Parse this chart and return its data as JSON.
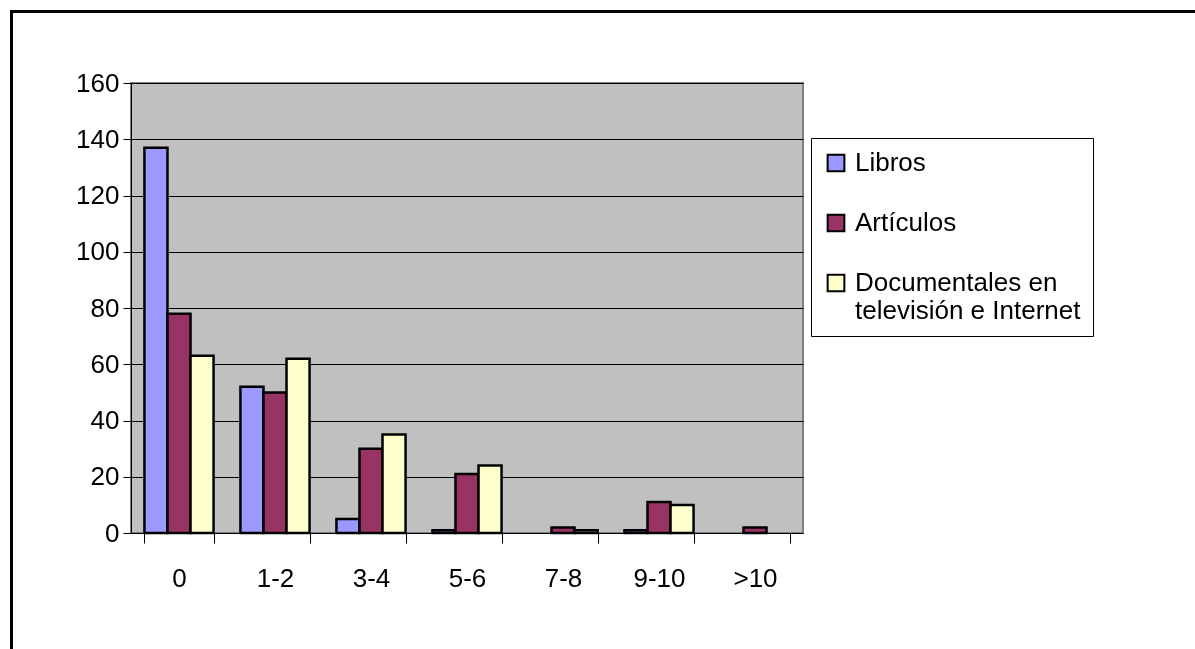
{
  "chart_data": {
    "type": "bar",
    "categories": [
      "0",
      "1-2",
      "3-4",
      "5-6",
      "7-8",
      "9-10",
      ">10"
    ],
    "series": [
      {
        "name": "Libros",
        "color": "#9999ff",
        "values": [
          137,
          52,
          5,
          1,
          0,
          1,
          0
        ]
      },
      {
        "name": "Artículos",
        "color": "#993366",
        "values": [
          78,
          50,
          30,
          21,
          2,
          11,
          2
        ]
      },
      {
        "name": "Documentales en televisión e Internet",
        "color": "#ffffcc",
        "values": [
          63,
          62,
          35,
          24,
          1,
          10,
          0
        ]
      }
    ],
    "ylim": [
      0,
      160
    ],
    "yticks": [
      0,
      20,
      40,
      60,
      80,
      100,
      120,
      140,
      160
    ],
    "grid": "y",
    "legend": "right"
  }
}
